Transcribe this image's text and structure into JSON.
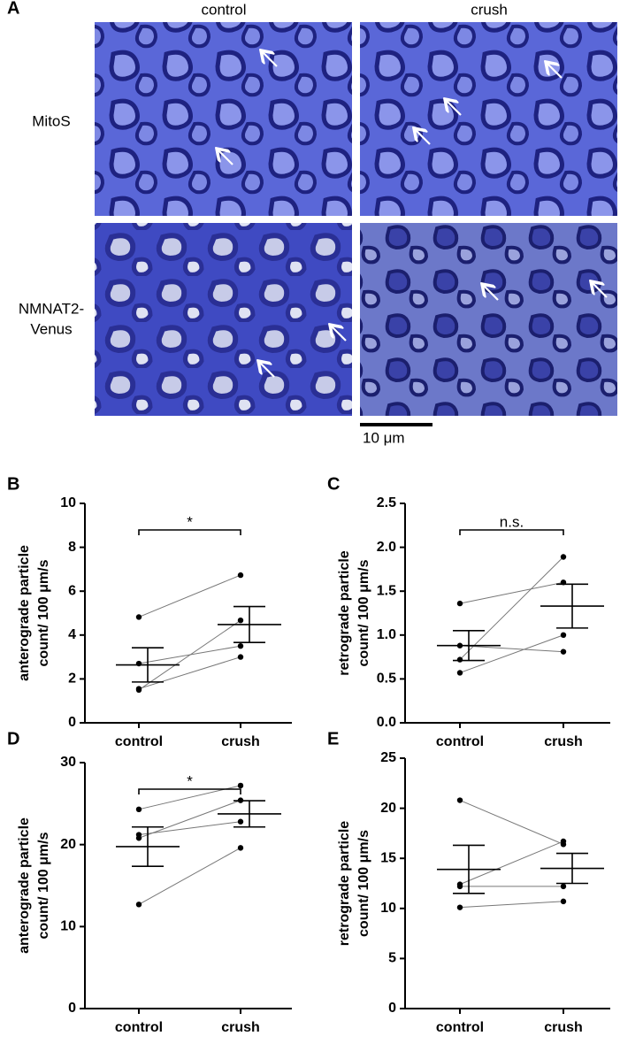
{
  "panel_a": {
    "panel": "A",
    "columns": [
      "control",
      "crush"
    ],
    "rows": [
      [
        "MitoS"
      ],
      [
        "NMNAT2-",
        "Venus"
      ]
    ],
    "scale_bar": "10 μm"
  },
  "chart_data": [
    {
      "type": "paired_dot",
      "panel": "B",
      "ylabel": [
        "anterograde particle",
        "count/ 100 μm/s"
      ],
      "categories": [
        "control",
        "crush"
      ],
      "series": [
        {
          "values": [
            4.82,
            6.73
          ]
        },
        {
          "values": [
            2.7,
            3.5
          ]
        },
        {
          "values": [
            1.5,
            4.67
          ]
        },
        {
          "values": [
            1.55,
            3.0
          ]
        }
      ],
      "mean": [
        2.64,
        4.48
      ],
      "sem": [
        0.78,
        0.82
      ],
      "significance": "*",
      "ylim": [
        0,
        10
      ],
      "yticks": [
        0,
        2,
        4,
        6,
        8,
        10
      ]
    },
    {
      "type": "paired_dot",
      "panel": "C",
      "ylabel": [
        "retrograde particle",
        "count/ 100 μm/s"
      ],
      "categories": [
        "control",
        "crush"
      ],
      "series": [
        {
          "values": [
            1.36,
            1.6
          ]
        },
        {
          "values": [
            0.88,
            0.81
          ]
        },
        {
          "values": [
            0.72,
            1.89
          ]
        },
        {
          "values": [
            0.57,
            1.0
          ]
        }
      ],
      "mean": [
        0.88,
        1.33
      ],
      "sem": [
        0.17,
        0.25
      ],
      "significance": "n.s.",
      "ylim": [
        0,
        2.5
      ],
      "yticks": [
        {
          "value": 0,
          "label": "0.0"
        },
        0.5,
        {
          "value": 1,
          "label": "1.0"
        },
        1.5,
        {
          "value": 2,
          "label": "2.0"
        },
        2.5
      ]
    },
    {
      "type": "paired_dot",
      "panel": "D",
      "ylabel": [
        "anterograde particle",
        "count/ 100 μm/s"
      ],
      "categories": [
        "control",
        "crush"
      ],
      "series": [
        {
          "values": [
            24.3,
            27.2
          ]
        },
        {
          "values": [
            21.2,
            22.8
          ]
        },
        {
          "values": [
            20.8,
            25.4
          ]
        },
        {
          "values": [
            12.7,
            19.6
          ]
        }
      ],
      "mean": [
        19.75,
        23.75
      ],
      "sem": [
        2.4,
        1.6
      ],
      "significance": "*",
      "ylim": [
        0,
        30
      ],
      "yticks": [
        0,
        10,
        20,
        30
      ]
    },
    {
      "type": "paired_dot",
      "panel": "E",
      "ylabel": [
        "retrograde particle",
        "count/ 100 μm/s"
      ],
      "categories": [
        "control",
        "crush"
      ],
      "series": [
        {
          "values": [
            20.8,
            16.4
          ]
        },
        {
          "values": [
            12.4,
            16.7
          ]
        },
        {
          "values": [
            12.2,
            12.2
          ]
        },
        {
          "values": [
            10.1,
            10.7
          ]
        }
      ],
      "mean": [
        13.9,
        14.0
      ],
      "sem": [
        2.4,
        1.5
      ],
      "ylim": [
        0,
        25
      ],
      "yticks": [
        0,
        5,
        10,
        15,
        20,
        25
      ]
    }
  ]
}
